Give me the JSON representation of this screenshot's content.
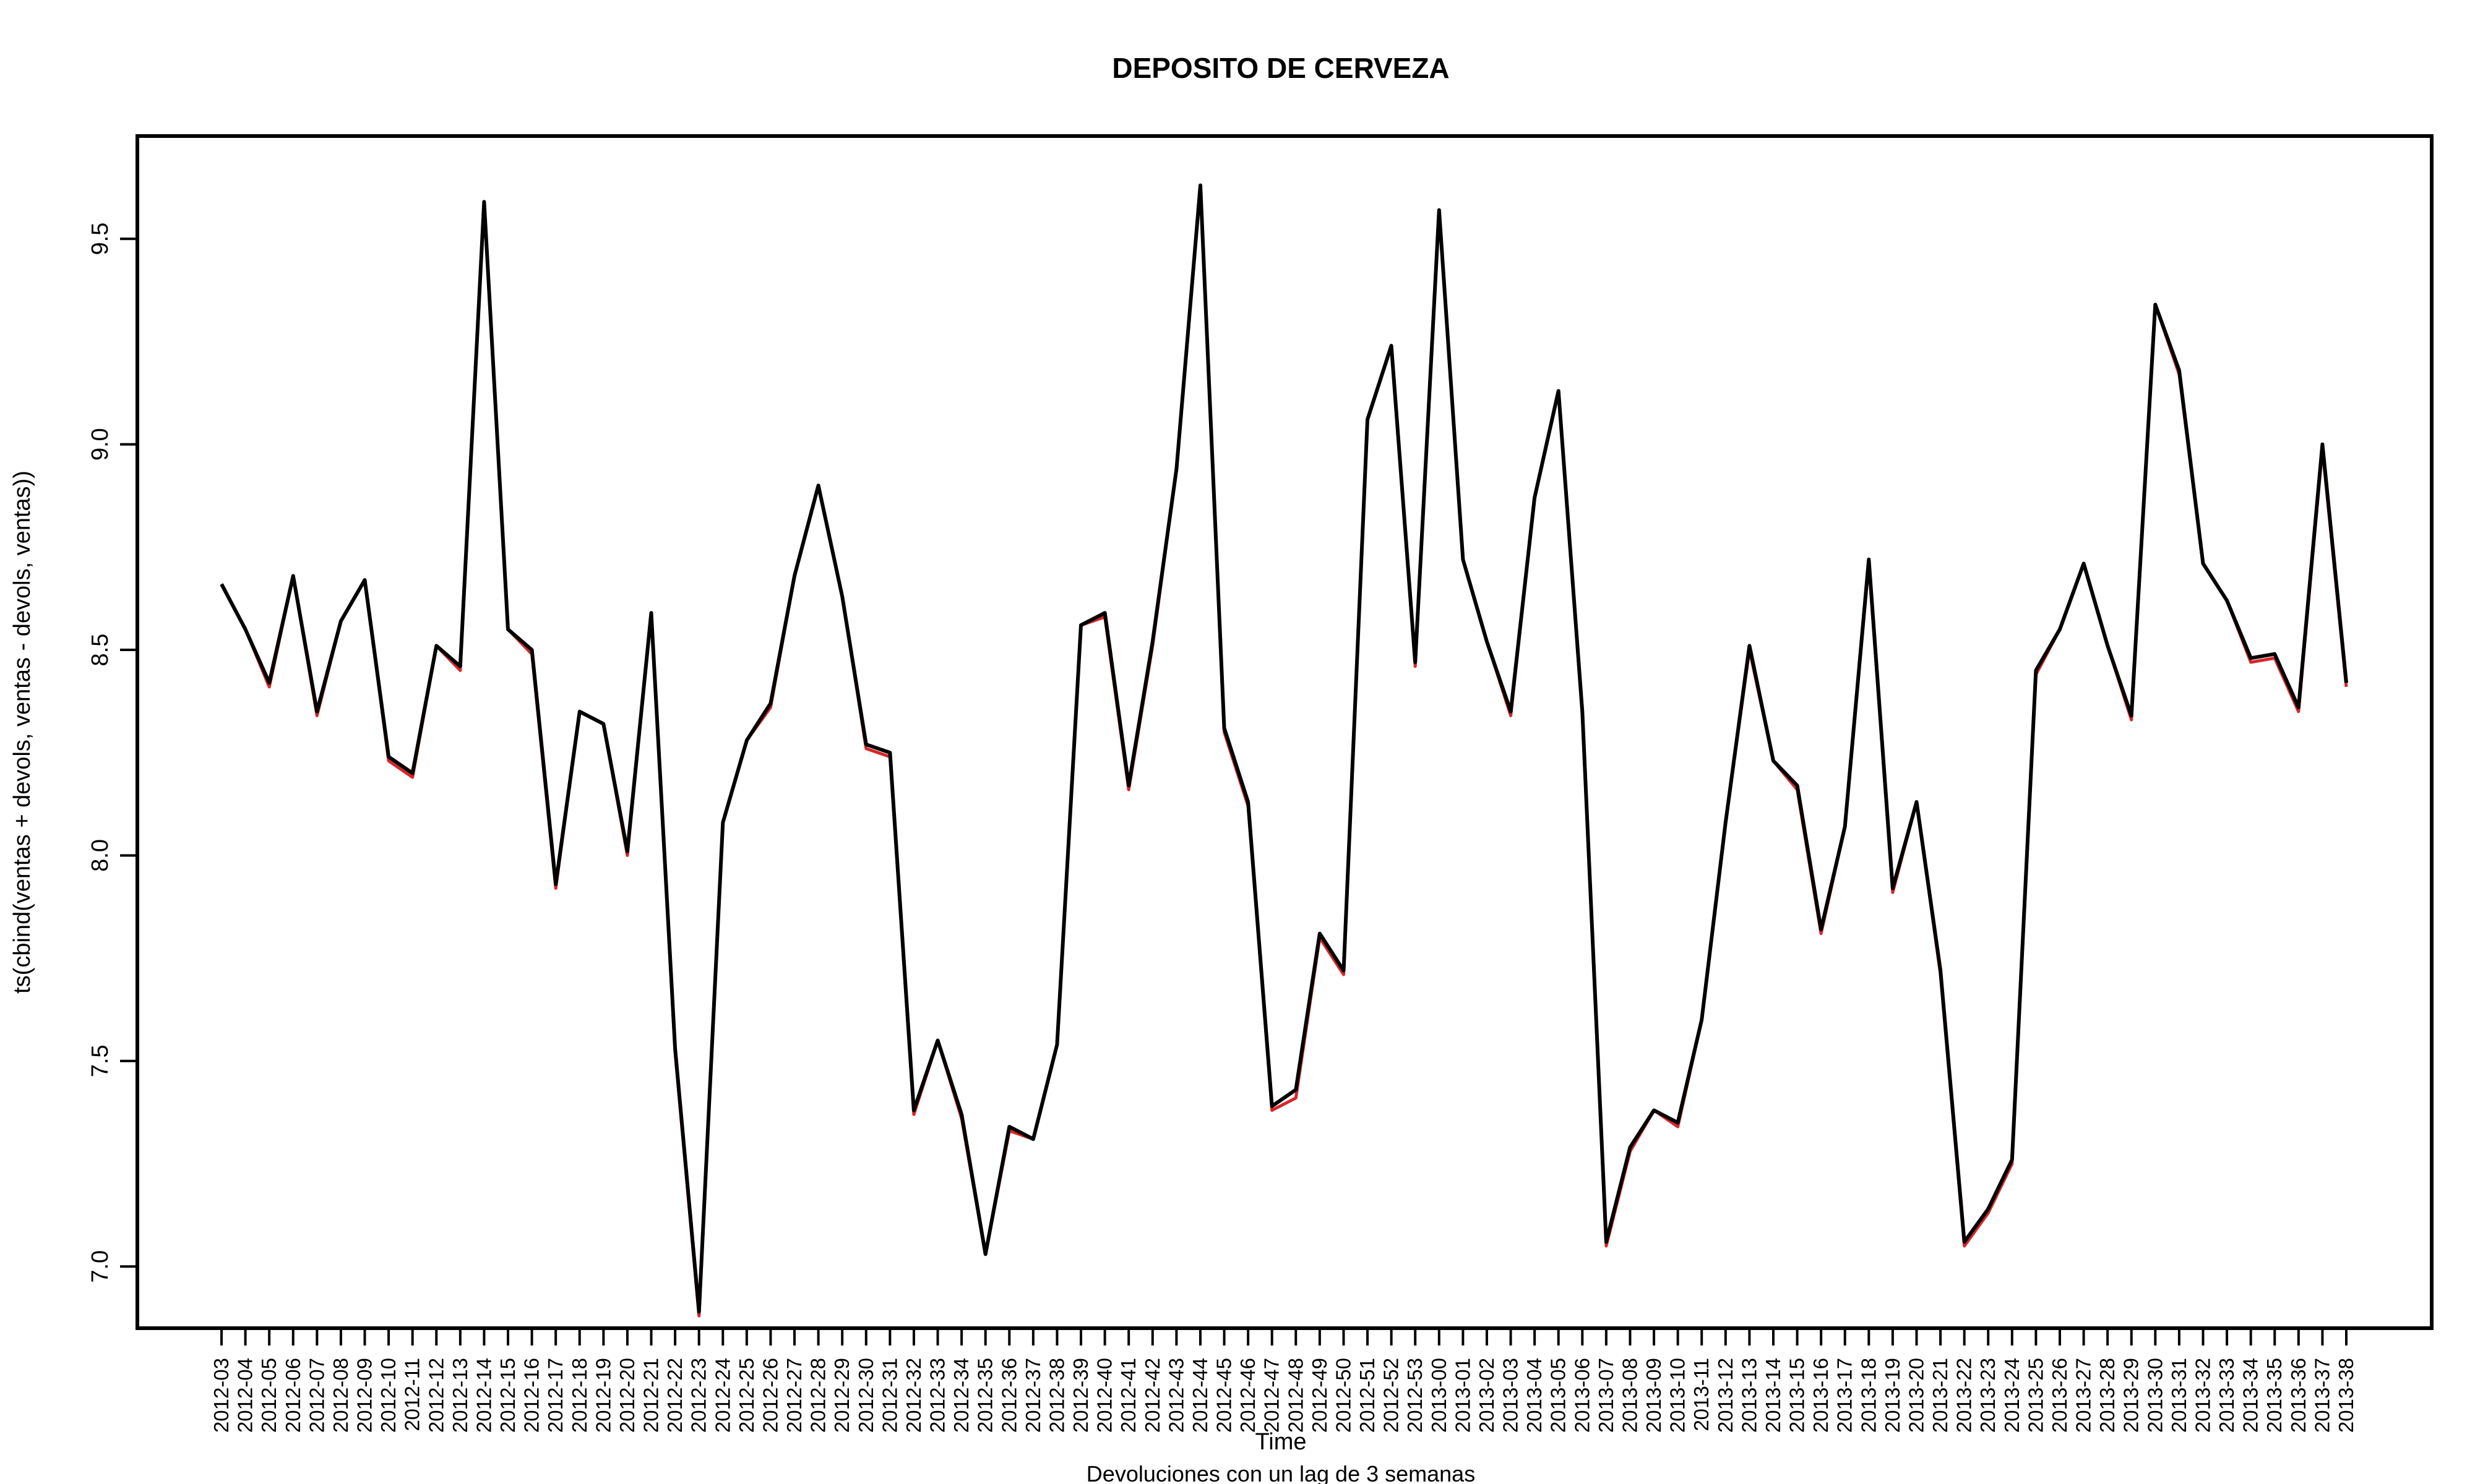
{
  "chart_data": {
    "type": "line",
    "title": "DEPOSITO DE CERVEZA",
    "xlabel": "Time",
    "ylabel": "ts(cbind(ventas + devols, ventas - devols, ventas))",
    "subtitle": "Devoluciones con un lag de 3 semanas",
    "ylim": [
      6.85,
      9.75
    ],
    "yticks": [
      7.0,
      7.5,
      8.0,
      8.5,
      9.0,
      9.5
    ],
    "ytick_labels": [
      "7.0",
      "7.5",
      "8.0",
      "8.5",
      "9.0",
      "9.5"
    ],
    "grid": false,
    "legend": "none",
    "x": [
      "2012-03",
      "2012-04",
      "2012-05",
      "2012-06",
      "2012-07",
      "2012-08",
      "2012-09",
      "2012-10",
      "2012-11",
      "2012-12",
      "2012-13",
      "2012-14",
      "2012-15",
      "2012-16",
      "2012-17",
      "2012-18",
      "2012-19",
      "2012-20",
      "2012-21",
      "2012-22",
      "2012-23",
      "2012-24",
      "2012-25",
      "2012-26",
      "2012-27",
      "2012-28",
      "2012-29",
      "2012-30",
      "2012-31",
      "2012-32",
      "2012-33",
      "2012-34",
      "2012-35",
      "2012-36",
      "2012-37",
      "2012-38",
      "2012-39",
      "2012-40",
      "2012-41",
      "2012-42",
      "2012-43",
      "2012-44",
      "2012-45",
      "2012-46",
      "2012-47",
      "2012-48",
      "2012-49",
      "2012-50",
      "2012-51",
      "2012-52",
      "2012-53",
      "2013-00",
      "2013-01",
      "2013-02",
      "2013-03",
      "2013-04",
      "2013-05",
      "2013-06",
      "2013-07",
      "2013-08",
      "2013-09",
      "2013-10",
      "2013-11",
      "2013-12",
      "2013-13",
      "2013-14",
      "2013-15",
      "2013-16",
      "2013-17",
      "2013-18",
      "2013-19",
      "2013-20",
      "2013-21",
      "2013-22",
      "2013-23",
      "2013-24",
      "2013-25",
      "2013-26",
      "2013-27",
      "2013-28",
      "2013-29",
      "2013-30",
      "2013-31",
      "2013-32",
      "2013-33",
      "2013-34",
      "2013-35",
      "2013-36",
      "2013-37",
      "2013-38"
    ],
    "series": [
      {
        "color": "#d62728",
        "values": [
          8.66,
          8.55,
          8.41,
          8.68,
          8.34,
          8.57,
          8.67,
          8.23,
          8.19,
          8.51,
          8.45,
          9.59,
          8.55,
          8.49,
          7.92,
          8.35,
          8.32,
          8.0,
          8.59,
          7.52,
          6.88,
          8.08,
          8.28,
          8.36,
          8.68,
          8.9,
          8.63,
          8.26,
          8.24,
          7.37,
          7.55,
          7.36,
          7.03,
          7.33,
          7.31,
          7.54,
          8.56,
          8.58,
          8.16,
          8.51,
          8.94,
          9.63,
          8.3,
          8.12,
          7.38,
          7.41,
          7.8,
          7.71,
          9.06,
          9.24,
          8.46,
          9.57,
          8.72,
          8.52,
          8.34,
          8.87,
          9.13,
          8.34,
          7.05,
          7.28,
          7.38,
          7.34,
          7.6,
          8.08,
          8.5,
          8.23,
          8.16,
          7.81,
          8.07,
          8.71,
          7.91,
          8.13,
          7.71,
          7.05,
          7.13,
          7.25,
          8.44,
          8.55,
          8.71,
          8.51,
          8.33,
          9.34,
          9.17,
          8.71,
          8.62,
          8.47,
          8.48,
          8.35,
          8.99,
          8.41
        ]
      },
      {
        "color": "#1f3fbf",
        "values": [
          8.66,
          8.55,
          8.42,
          8.68,
          8.35,
          8.57,
          8.67,
          8.24,
          8.2,
          8.51,
          8.46,
          9.59,
          8.55,
          8.5,
          7.93,
          8.35,
          8.32,
          8.01,
          8.59,
          7.53,
          6.89,
          8.08,
          8.28,
          8.37,
          8.68,
          8.9,
          8.63,
          8.27,
          8.25,
          7.38,
          7.55,
          7.37,
          7.03,
          7.34,
          7.31,
          7.54,
          8.56,
          8.59,
          8.17,
          8.52,
          8.94,
          9.63,
          8.31,
          8.13,
          7.39,
          7.43,
          7.81,
          7.72,
          9.06,
          9.24,
          8.47,
          9.57,
          8.72,
          8.52,
          8.35,
          8.87,
          9.13,
          8.35,
          7.06,
          7.29,
          7.38,
          7.35,
          7.6,
          8.08,
          8.51,
          8.23,
          8.17,
          7.82,
          8.07,
          8.72,
          7.92,
          8.13,
          7.72,
          7.06,
          7.14,
          7.26,
          8.45,
          8.55,
          8.71,
          8.51,
          8.34,
          9.34,
          9.18,
          8.71,
          8.62,
          8.48,
          8.49,
          8.36,
          9.0,
          8.42
        ]
      },
      {
        "color": "#000000",
        "values": [
          8.66,
          8.55,
          8.42,
          8.68,
          8.35,
          8.57,
          8.67,
          8.24,
          8.2,
          8.51,
          8.46,
          9.59,
          8.55,
          8.5,
          7.93,
          8.35,
          8.32,
          8.01,
          8.59,
          7.53,
          6.89,
          8.08,
          8.28,
          8.37,
          8.68,
          8.9,
          8.63,
          8.27,
          8.25,
          7.38,
          7.55,
          7.37,
          7.03,
          7.34,
          7.31,
          7.54,
          8.56,
          8.59,
          8.17,
          8.52,
          8.94,
          9.63,
          8.31,
          8.13,
          7.39,
          7.43,
          7.81,
          7.72,
          9.06,
          9.24,
          8.47,
          9.57,
          8.72,
          8.52,
          8.35,
          8.87,
          9.13,
          8.35,
          7.06,
          7.29,
          7.38,
          7.35,
          7.6,
          8.08,
          8.51,
          8.23,
          8.17,
          7.82,
          8.07,
          8.72,
          7.92,
          8.13,
          7.72,
          7.06,
          7.14,
          7.26,
          8.45,
          8.55,
          8.71,
          8.51,
          8.34,
          9.34,
          9.18,
          8.71,
          8.62,
          8.48,
          8.49,
          8.36,
          9.0,
          8.42
        ]
      }
    ]
  }
}
